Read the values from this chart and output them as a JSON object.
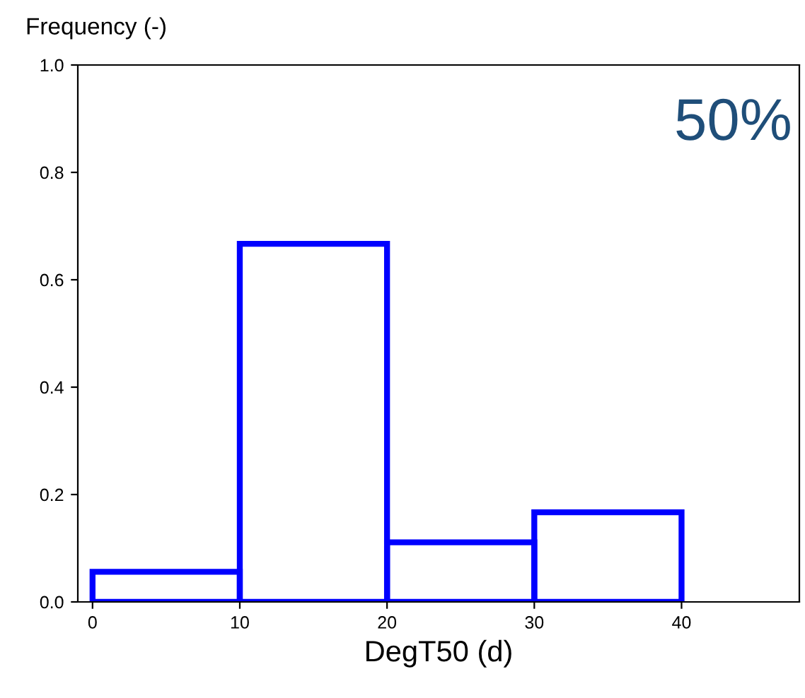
{
  "chart_data": {
    "type": "histogram",
    "ylabel": "Frequency (-)",
    "xlabel": "DegT50 (d)",
    "bins": [
      0,
      10,
      20,
      30,
      40
    ],
    "values": [
      0.056,
      0.667,
      0.111,
      0.167
    ],
    "color": "#0000ff",
    "xlim": [
      -1,
      48
    ],
    "xticks": [
      0,
      10,
      20,
      30,
      40
    ],
    "ylim": [
      0,
      1.0
    ],
    "yticks": [
      {
        "value": 0,
        "label": "0.0"
      },
      0.2,
      0.4,
      0.6,
      0.8,
      {
        "value": 1,
        "label": "1.0"
      }
    ],
    "grid": false,
    "annotations": [
      "50%"
    ]
  }
}
